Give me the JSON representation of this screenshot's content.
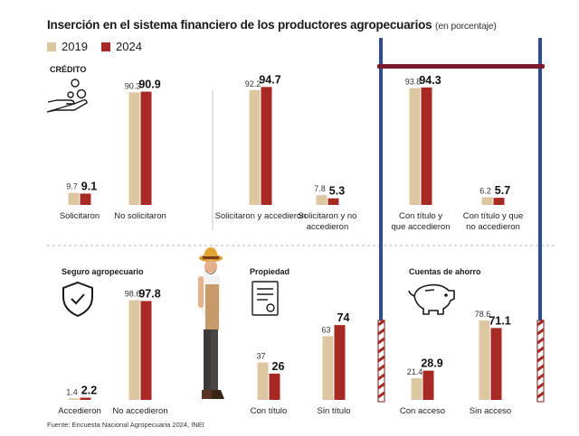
{
  "title": "Inserción en el sistema financiero de los productores agropecuarios",
  "subtitle": "(en porcentaje)",
  "legend": [
    {
      "label": "2019",
      "color": "#dcc7a1"
    },
    {
      "label": "2024",
      "color": "#a62a23"
    }
  ],
  "sections": {
    "credito": "CRÉDITO",
    "seguro": "Seguro agropecuario",
    "propiedad": "Propiedad",
    "ahorro": "Cuentas de ahorro"
  },
  "source": "Fuente: Encuesta Nacional Agropecuaria 2024, INEI",
  "chart_data": [
    {
      "type": "bar",
      "section": "CRÉDITO",
      "categories": [
        "Solicitaron",
        "No solicitaron"
      ],
      "series": [
        {
          "name": "2019",
          "values": [
            9.7,
            90.3
          ]
        },
        {
          "name": "2024",
          "values": [
            9.1,
            90.9
          ]
        }
      ]
    },
    {
      "type": "bar",
      "section": "CRÉDITO",
      "categories": [
        "Solicitaron y accedieron",
        "Solicitaron y no accedieron"
      ],
      "series": [
        {
          "name": "2019",
          "values": [
            92.2,
            7.8
          ]
        },
        {
          "name": "2024",
          "values": [
            94.7,
            5.3
          ]
        }
      ]
    },
    {
      "type": "bar",
      "section": "CRÉDITO",
      "categories": [
        "Con título y que accedieron",
        "Con título y que no accedieron"
      ],
      "series": [
        {
          "name": "2019",
          "values": [
            93.8,
            6.2
          ]
        },
        {
          "name": "2024",
          "values": [
            94.3,
            5.7
          ]
        }
      ]
    },
    {
      "type": "bar",
      "section": "Seguro agropecuario",
      "categories": [
        "Accedieron",
        "No accedieron"
      ],
      "series": [
        {
          "name": "2019",
          "values": [
            1.4,
            98.6
          ]
        },
        {
          "name": "2024",
          "values": [
            2.2,
            97.8
          ]
        }
      ]
    },
    {
      "type": "bar",
      "section": "Propiedad",
      "categories": [
        "Con título",
        "Sin título"
      ],
      "series": [
        {
          "name": "2019",
          "values": [
            37,
            63
          ]
        },
        {
          "name": "2024",
          "values": [
            26,
            74
          ]
        }
      ]
    },
    {
      "type": "bar",
      "section": "Cuentas de ahorro",
      "categories": [
        "Con acceso",
        "Sin acceso"
      ],
      "series": [
        {
          "name": "2019",
          "values": [
            21.4,
            78.6
          ]
        },
        {
          "name": "2024",
          "values": [
            28.9,
            71.1
          ]
        }
      ]
    }
  ]
}
